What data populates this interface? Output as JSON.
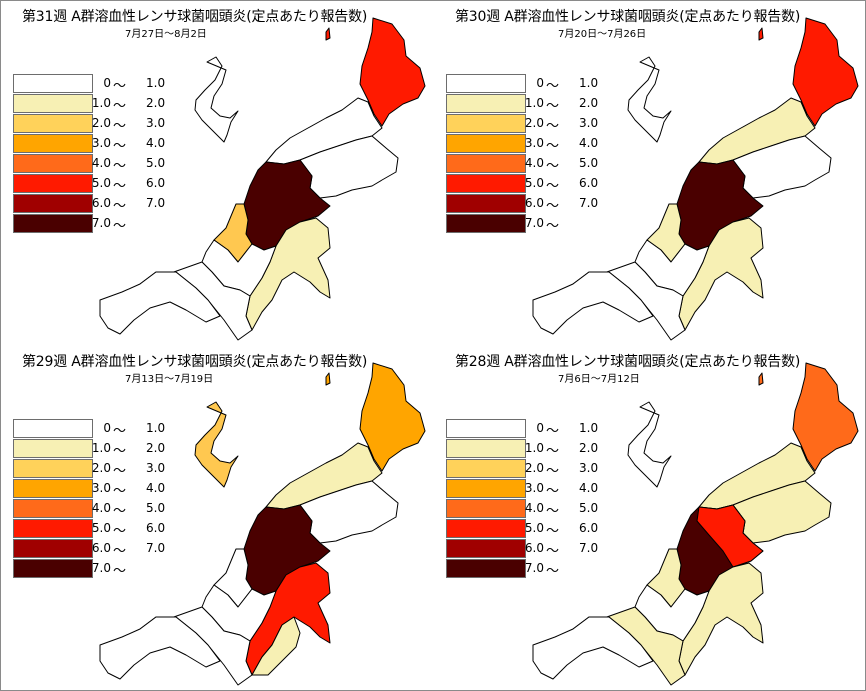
{
  "panels": [
    {
      "title": "第31週 A群溶血性レンサ球菌咽頭炎(定点あたり報告数)",
      "date_range": "7月27日～8月2日",
      "regions": {
        "north": "#ff1a00",
        "awashima": "#ff1a00",
        "sado": "#ffffff",
        "central_north": "#ffffff",
        "east": "#ffffff",
        "central": "#4a0000",
        "kashiwazaki": "#ffc850",
        "south_east": "#f7f0b4",
        "west": "#ffffff",
        "joetsu": "#ffffff",
        "itoigawa": "#ffffff"
      }
    },
    {
      "title": "第30週 A群溶血性レンサ球菌咽頭炎(定点あたり報告数)",
      "date_range": "7月20日～7月26日",
      "regions": {
        "north": "#ff1a00",
        "awashima": "#ff1a00",
        "sado": "#ffffff",
        "central_north": "#f7f0b4",
        "east": "#ffffff",
        "central": "#4a0000",
        "kashiwazaki": "#f7f0b4",
        "south_east": "#f7f0b4",
        "west": "#ffffff",
        "joetsu": "#ffffff",
        "itoigawa": "#ffffff"
      }
    },
    {
      "title": "第29週 A群溶血性レンサ球菌咽頭炎(定点あたり報告数)",
      "date_range": "7月13日～7月19日",
      "regions": {
        "north": "#ffa500",
        "awashima": "#ffa500",
        "sado": "#ffc850",
        "central_north": "#f7f0b4",
        "east": "#ffffff",
        "central": "#4a0000",
        "kashiwazaki": "#ffffff",
        "south_east": "#ff1a00",
        "south_east_lower": "#f7f0b4",
        "west": "#ffffff",
        "joetsu": "#ffffff",
        "itoigawa": "#ffffff"
      }
    },
    {
      "title": "第28週 A群溶血性レンサ球菌咽頭炎(定点あたり報告数)",
      "date_range": "7月6日～7月12日",
      "regions": {
        "north": "#ff6a1a",
        "awashima": "#ff6a1a",
        "sado": "#ffffff",
        "central_north": "#f7f0b4",
        "east": "#f7f0b4",
        "central": "#4a0000",
        "central_red": "#ff1a00",
        "kashiwazaki": "#f7f0b4",
        "south_east": "#f7f0b4",
        "west": "#ffffff",
        "joetsu": "#f7f0b4",
        "itoigawa": "#ffffff"
      }
    }
  ],
  "legend": [
    {
      "from": "0",
      "tilde": "～",
      "to": "1.0",
      "color": "#ffffff"
    },
    {
      "from": "1.0",
      "tilde": "～",
      "to": "2.0",
      "color": "#f7f0b4"
    },
    {
      "from": "2.0",
      "tilde": "～",
      "to": "3.0",
      "color": "#ffd25a"
    },
    {
      "from": "3.0",
      "tilde": "～",
      "to": "4.0",
      "color": "#ffa500"
    },
    {
      "from": "4.0",
      "tilde": "～",
      "to": "5.0",
      "color": "#ff6a1a"
    },
    {
      "from": "5.0",
      "tilde": "～",
      "to": "6.0",
      "color": "#ff1a00"
    },
    {
      "from": "6.0",
      "tilde": "～",
      "to": "7.0",
      "color": "#a00000"
    },
    {
      "from": "7.0",
      "tilde": "～",
      "to": "",
      "color": "#4a0000"
    }
  ]
}
